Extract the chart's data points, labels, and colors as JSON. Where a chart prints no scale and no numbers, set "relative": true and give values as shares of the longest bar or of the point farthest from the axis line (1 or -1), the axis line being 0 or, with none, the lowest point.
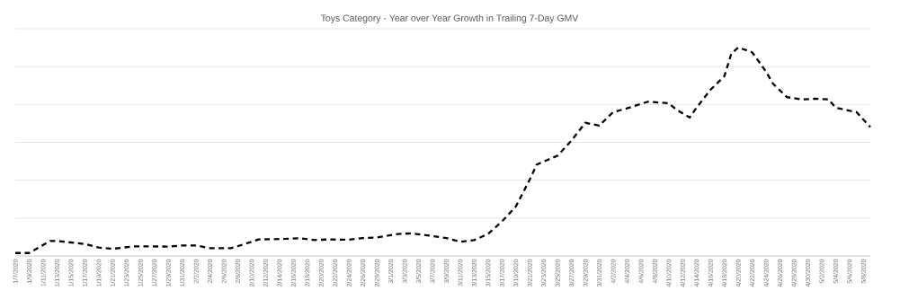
{
  "chart_data": {
    "type": "line",
    "title": "Toys Category - Year over Year Growth in Trailing 7-Day GMV",
    "relative": true,
    "grid": "y",
    "line_style": "dashed",
    "marker": "none",
    "series": [
      {
        "color": "#000000",
        "x": [
          "2020-01-07",
          "2020-01-09",
          "2020-01-12",
          "2020-01-13",
          "2020-01-17",
          "2020-01-19",
          "2020-01-21",
          "2020-01-24",
          "2020-01-29",
          "2020-01-31",
          "2020-02-02",
          "2020-02-04",
          "2020-02-07",
          "2020-02-09",
          "2020-02-11",
          "2020-02-15",
          "2020-02-17",
          "2020-02-19",
          "2020-02-21",
          "2020-02-24",
          "2020-02-26",
          "2020-02-28",
          "2020-03-02",
          "2020-03-04",
          "2020-03-06",
          "2020-03-09",
          "2020-03-11",
          "2020-03-13",
          "2020-03-15",
          "2020-03-17",
          "2020-03-19",
          "2020-03-21",
          "2020-03-22",
          "2020-03-25",
          "2020-03-27",
          "2020-03-29",
          "2020-03-31",
          "2020-04-02",
          "2020-04-04",
          "2020-04-07",
          "2020-04-10",
          "2020-04-11",
          "2020-04-13",
          "2020-04-14",
          "2020-04-16",
          "2020-04-18",
          "2020-04-19",
          "2020-04-20",
          "2020-04-22",
          "2020-04-24",
          "2020-04-25",
          "2020-04-27",
          "2020-04-29",
          "2020-05-01",
          "2020-05-03",
          "2020-05-04",
          "2020-05-07",
          "2020-05-09"
        ],
        "values": [
          0.014,
          0.014,
          0.072,
          0.072,
          0.057,
          0.04,
          0.034,
          0.046,
          0.045,
          0.05,
          0.05,
          0.037,
          0.037,
          0.057,
          0.079,
          0.082,
          0.085,
          0.076,
          0.079,
          0.078,
          0.086,
          0.088,
          0.105,
          0.108,
          0.1,
          0.086,
          0.068,
          0.076,
          0.105,
          0.165,
          0.237,
          0.366,
          0.438,
          0.481,
          0.553,
          0.639,
          0.625,
          0.69,
          0.708,
          0.74,
          0.733,
          0.704,
          0.664,
          0.711,
          0.797,
          0.862,
          0.97,
          1,
          0.977,
          0.884,
          0.826,
          0.762,
          0.751,
          0.754,
          0.751,
          0.711,
          0.69,
          0.618
        ]
      }
    ],
    "xlim": [
      "2020-01-07",
      "2020-05-09"
    ],
    "xticks": [
      {
        "value": "2020-01-07",
        "label": "1/7/2020"
      },
      {
        "value": "2020-01-09",
        "label": "1/9/2020"
      },
      {
        "value": "2020-01-11",
        "label": "1/11/2020"
      },
      {
        "value": "2020-01-13",
        "label": "1/13/2020"
      },
      {
        "value": "2020-01-15",
        "label": "1/15/2020"
      },
      {
        "value": "2020-01-17",
        "label": "1/17/2020"
      },
      {
        "value": "2020-01-19",
        "label": "1/19/2020"
      },
      {
        "value": "2020-01-21",
        "label": "1/21/2020"
      },
      {
        "value": "2020-01-23",
        "label": "1/23/2020"
      },
      {
        "value": "2020-01-25",
        "label": "1/25/2020"
      },
      {
        "value": "2020-01-27",
        "label": "1/27/2020"
      },
      {
        "value": "2020-01-29",
        "label": "1/29/2020"
      },
      {
        "value": "2020-01-31",
        "label": "1/31/2020"
      },
      {
        "value": "2020-02-02",
        "label": "2/2/2020"
      },
      {
        "value": "2020-02-04",
        "label": "2/4/2020"
      },
      {
        "value": "2020-02-06",
        "label": "2/6/2020"
      },
      {
        "value": "2020-02-08",
        "label": "2/8/2020"
      },
      {
        "value": "2020-02-10",
        "label": "2/10/2020"
      },
      {
        "value": "2020-02-12",
        "label": "2/12/2020"
      },
      {
        "value": "2020-02-14",
        "label": "2/14/2020"
      },
      {
        "value": "2020-02-16",
        "label": "2/16/2020"
      },
      {
        "value": "2020-02-18",
        "label": "2/18/2020"
      },
      {
        "value": "2020-02-20",
        "label": "2/20/2020"
      },
      {
        "value": "2020-02-22",
        "label": "2/22/2020"
      },
      {
        "value": "2020-02-24",
        "label": "2/24/2020"
      },
      {
        "value": "2020-02-26",
        "label": "2/26/2020"
      },
      {
        "value": "2020-02-28",
        "label": "2/28/2020"
      },
      {
        "value": "2020-03-01",
        "label": "3/1/2020"
      },
      {
        "value": "2020-03-03",
        "label": "3/3/2020"
      },
      {
        "value": "2020-03-05",
        "label": "3/5/2020"
      },
      {
        "value": "2020-03-07",
        "label": "3/7/2020"
      },
      {
        "value": "2020-03-09",
        "label": "3/9/2020"
      },
      {
        "value": "2020-03-11",
        "label": "3/11/2020"
      },
      {
        "value": "2020-03-13",
        "label": "3/13/2020"
      },
      {
        "value": "2020-03-15",
        "label": "3/15/2020"
      },
      {
        "value": "2020-03-17",
        "label": "3/17/2020"
      },
      {
        "value": "2020-03-19",
        "label": "3/19/2020"
      },
      {
        "value": "2020-03-21",
        "label": "3/21/2020"
      },
      {
        "value": "2020-03-23",
        "label": "3/23/2020"
      },
      {
        "value": "2020-03-25",
        "label": "3/25/2020"
      },
      {
        "value": "2020-03-27",
        "label": "3/27/2020"
      },
      {
        "value": "2020-03-29",
        "label": "3/29/2020"
      },
      {
        "value": "2020-03-31",
        "label": "3/31/2020"
      },
      {
        "value": "2020-04-02",
        "label": "4/2/2020"
      },
      {
        "value": "2020-04-04",
        "label": "4/4/2020"
      },
      {
        "value": "2020-04-06",
        "label": "4/6/2020"
      },
      {
        "value": "2020-04-08",
        "label": "4/8/2020"
      },
      {
        "value": "2020-04-10",
        "label": "4/10/2020"
      },
      {
        "value": "2020-04-12",
        "label": "4/12/2020"
      },
      {
        "value": "2020-04-14",
        "label": "4/14/2020"
      },
      {
        "value": "2020-04-16",
        "label": "4/16/2020"
      },
      {
        "value": "2020-04-18",
        "label": "4/18/2020"
      },
      {
        "value": "2020-04-20",
        "label": "4/20/2020"
      },
      {
        "value": "2020-04-22",
        "label": "4/22/2020"
      },
      {
        "value": "2020-04-24",
        "label": "4/24/2020"
      },
      {
        "value": "2020-04-26",
        "label": "4/26/2020"
      },
      {
        "value": "2020-04-28",
        "label": "4/28/2020"
      },
      {
        "value": "2020-04-30",
        "label": "4/30/2020"
      },
      {
        "value": "2020-05-02",
        "label": "5/2/2020"
      },
      {
        "value": "2020-05-04",
        "label": "5/4/2020"
      },
      {
        "value": "2020-05-06",
        "label": "5/6/2020"
      },
      {
        "value": "2020-05-08",
        "label": "5/8/2020"
      }
    ]
  }
}
